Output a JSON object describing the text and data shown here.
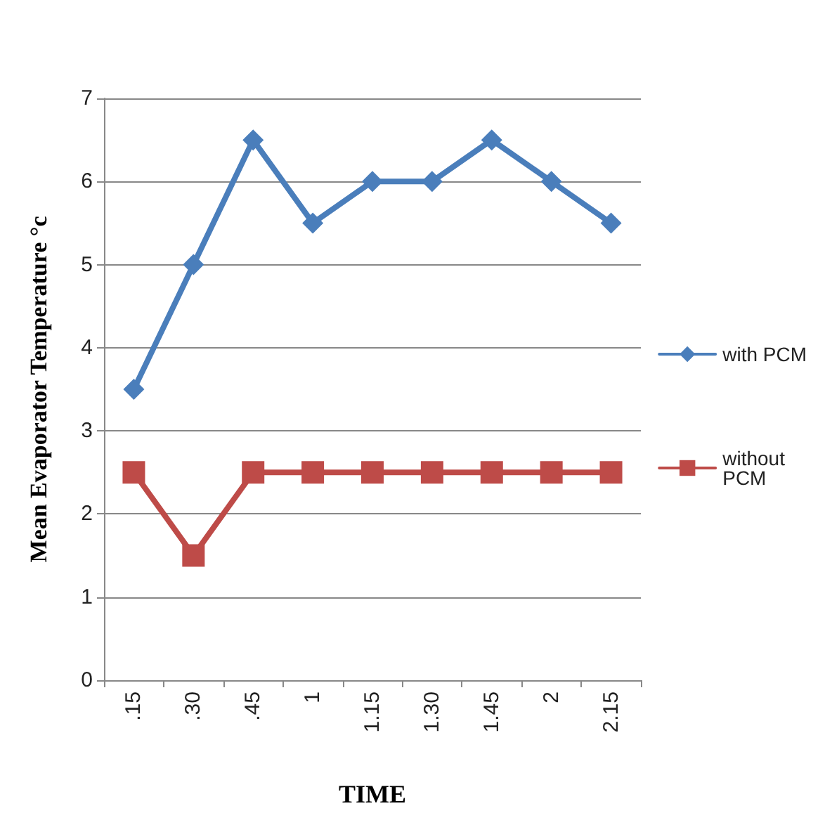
{
  "chart_data": {
    "type": "line",
    "xlabel": "TIME",
    "ylabel": "Mean Evaporator Temperature °c",
    "categories": [
      ".15",
      ".30",
      ".45",
      "1",
      "1.15",
      "1.30",
      "1.45",
      "2",
      "2.15"
    ],
    "series": [
      {
        "name": "with PCM",
        "color": "#4a7ebb",
        "marker": "diamond",
        "values": [
          3.5,
          5,
          6.5,
          5.5,
          6,
          6,
          6.5,
          6,
          5.5
        ]
      },
      {
        "name": "without PCM",
        "color": "#be4b48",
        "marker": "square",
        "values": [
          2.5,
          1.5,
          2.5,
          2.5,
          2.5,
          2.5,
          2.5,
          2.5,
          2.5
        ]
      }
    ],
    "ylim": [
      0,
      7
    ],
    "yticks": [
      0,
      1,
      2,
      3,
      4,
      5,
      6,
      7
    ],
    "grid": "y",
    "legend": "right",
    "line_style": "solid"
  }
}
